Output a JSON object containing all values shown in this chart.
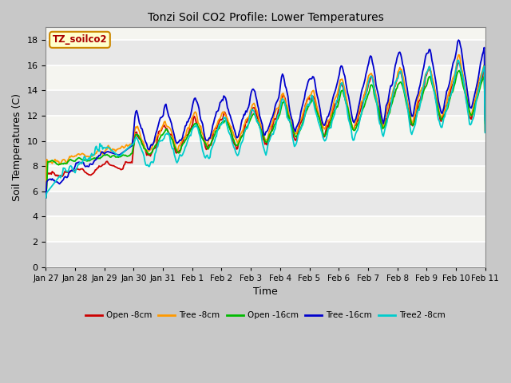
{
  "title": "Tonzi Soil CO2 Profile: Lower Temperatures",
  "xlabel": "Time",
  "ylabel": "Soil Temperatures (C)",
  "ylim": [
    0,
    19
  ],
  "yticks": [
    0,
    2,
    4,
    6,
    8,
    10,
    12,
    14,
    16,
    18
  ],
  "legend_label": "TZ_soilco2",
  "colors": [
    "#cc0000",
    "#ff9900",
    "#00bb00",
    "#0000cc",
    "#00cccc"
  ],
  "labels": [
    "Open -8cm",
    "Tree -8cm",
    "Open -16cm",
    "Tree -16cm",
    "Tree2 -8cm"
  ],
  "xtick_labels": [
    "Jan 27",
    "Jan 28",
    "Jan 29",
    "Jan 30",
    "Jan 31",
    "Feb 1",
    "Feb 2",
    "Feb 3",
    "Feb 4",
    "Feb 5",
    "Feb 6",
    "Feb 7",
    "Feb 8",
    "Feb 9",
    "Feb 10",
    "Feb 11"
  ],
  "plot_bg": "#f0f0f0",
  "fig_bg": "#d0d0d0",
  "n_points": 480
}
